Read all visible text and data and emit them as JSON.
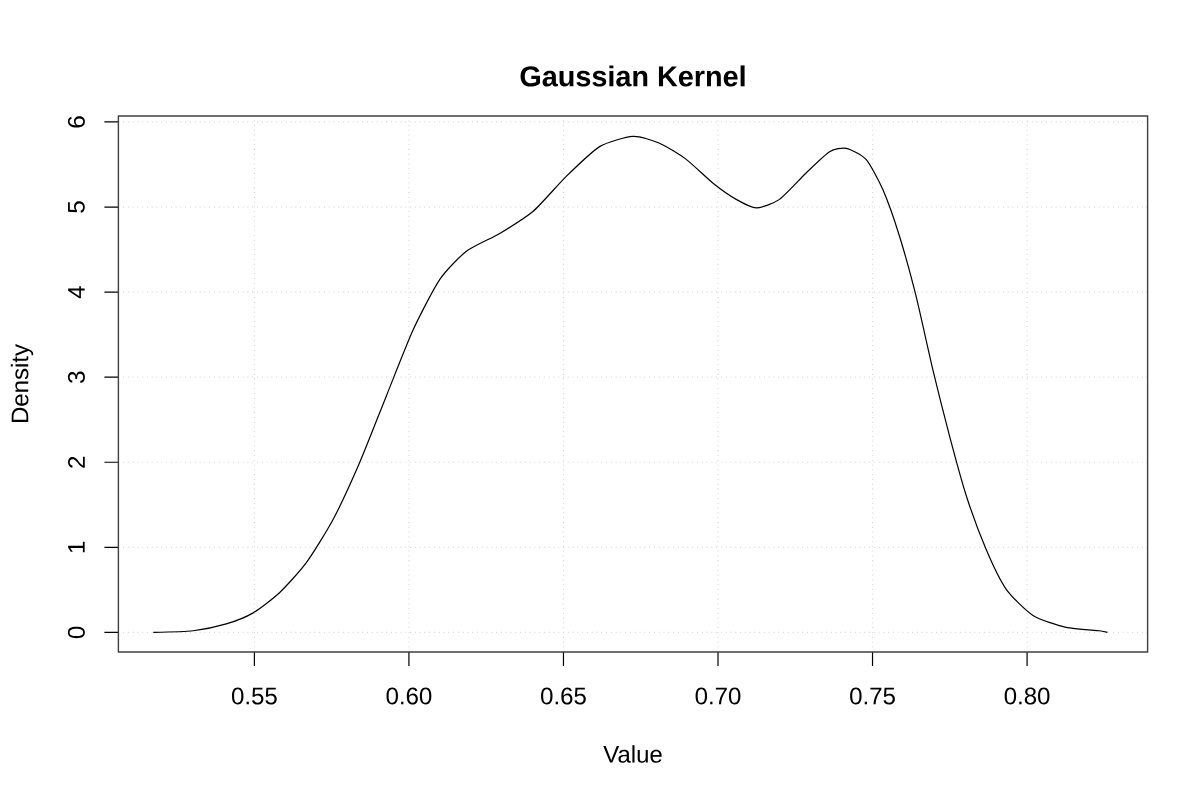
{
  "chart_data": {
    "type": "line",
    "title": "Gaussian Kernel",
    "xlabel": "Value",
    "ylabel": "Density",
    "x": [
      0.5173,
      0.5302,
      0.5409,
      0.5496,
      0.5582,
      0.5668,
      0.5755,
      0.5841,
      0.5927,
      0.6014,
      0.61,
      0.6186,
      0.6294,
      0.6402,
      0.6509,
      0.6617,
      0.6725,
      0.6811,
      0.6897,
      0.6984,
      0.7059,
      0.7124,
      0.7199,
      0.7285,
      0.7361,
      0.7415,
      0.7479,
      0.7534,
      0.7587,
      0.7641,
      0.7695,
      0.7749,
      0.7803,
      0.7867,
      0.7932,
      0.8019,
      0.8126,
      0.8234,
      0.826
    ],
    "series": [
      {
        "color": "#000000",
        "values": [
          0,
          0.02,
          0.1,
          0.23,
          0.47,
          0.82,
          1.33,
          2.0,
          2.78,
          3.56,
          4.15,
          4.48,
          4.69,
          4.95,
          5.36,
          5.71,
          5.83,
          5.75,
          5.56,
          5.28,
          5.09,
          4.99,
          5.09,
          5.4,
          5.65,
          5.69,
          5.56,
          5.2,
          4.66,
          3.95,
          3.09,
          2.31,
          1.61,
          0.98,
          0.51,
          0.2,
          0.06,
          0.02,
          0
        ]
      }
    ],
    "xlim": [
      0.506,
      0.839
    ],
    "ylim": [
      -0.23,
      6.07
    ],
    "xticks": [
      0.55,
      {
        "value": 0.6,
        "label": "0.60"
      },
      0.65,
      {
        "value": 0.7,
        "label": "0.70"
      },
      0.75,
      {
        "value": 0.8,
        "label": "0.80"
      }
    ],
    "yticks": [
      0,
      1,
      2,
      3,
      4,
      5,
      6
    ],
    "grid": true
  }
}
